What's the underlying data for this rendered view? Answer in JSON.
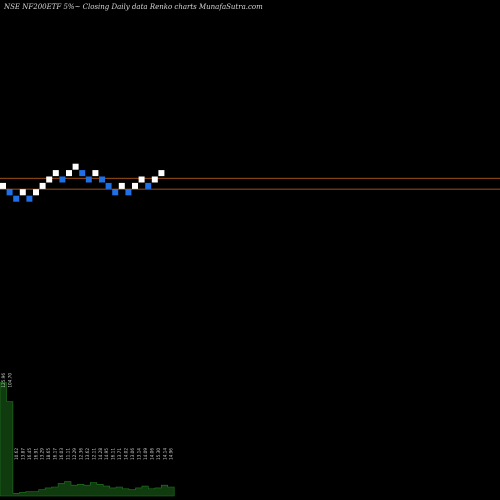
{
  "title": "NSE NF200ETF 5%~  Closing Daily data  Renko  charts MunafaSutra.com",
  "chart_data": {
    "type": "renko",
    "title": "NSE NF200ETF 5%~  Closing Daily data  Renko  charts MunafaSutra.com",
    "bricks": [
      {
        "level": 4,
        "dir": "up"
      },
      {
        "level": 3,
        "dir": "down"
      },
      {
        "level": 2,
        "dir": "down"
      },
      {
        "level": 3,
        "dir": "up"
      },
      {
        "level": 2,
        "dir": "down"
      },
      {
        "level": 3,
        "dir": "up"
      },
      {
        "level": 4,
        "dir": "up"
      },
      {
        "level": 5,
        "dir": "up"
      },
      {
        "level": 6,
        "dir": "up"
      },
      {
        "level": 5,
        "dir": "down"
      },
      {
        "level": 6,
        "dir": "up"
      },
      {
        "level": 7,
        "dir": "up"
      },
      {
        "level": 6,
        "dir": "down"
      },
      {
        "level": 5,
        "dir": "down"
      },
      {
        "level": 6,
        "dir": "up"
      },
      {
        "level": 5,
        "dir": "down"
      },
      {
        "level": 4,
        "dir": "down"
      },
      {
        "level": 3,
        "dir": "down"
      },
      {
        "level": 4,
        "dir": "up"
      },
      {
        "level": 3,
        "dir": "down"
      },
      {
        "level": 4,
        "dir": "up"
      },
      {
        "level": 5,
        "dir": "up"
      },
      {
        "level": 4,
        "dir": "down"
      },
      {
        "level": 5,
        "dir": "up"
      },
      {
        "level": 6,
        "dir": "up"
      }
    ],
    "reference_lines": [
      5.2,
      3.5
    ],
    "volume_labels": [
      "125.96",
      "104.70",
      "10.62",
      "13.87",
      "16.45",
      "16.91",
      "13.29",
      "18.65",
      "16.17",
      "16.03",
      "11.11",
      "12.29",
      "12.36",
      "13.62",
      "12.11",
      "14.28",
      "14.95",
      "16.11",
      "13.71",
      "14.02",
      "13.06",
      "13.14",
      "14.09",
      "14.06",
      "15.30",
      "14.14",
      "14.96"
    ],
    "volumes": [
      126,
      105,
      3,
      4,
      5,
      5,
      7,
      9,
      10,
      14,
      16,
      12,
      13,
      12,
      15,
      13,
      11,
      9,
      10,
      8,
      7,
      9,
      11,
      8,
      9,
      12,
      10
    ],
    "colors": {
      "background": "#000000",
      "up_brick": "#ffffff",
      "down_brick": "#1f6fe6",
      "reference_line": "#d2691e",
      "volume_fill": "#0f3b0f",
      "volume_stroke": "#1e7a1e",
      "volume_label": "#cfcfcf"
    }
  }
}
